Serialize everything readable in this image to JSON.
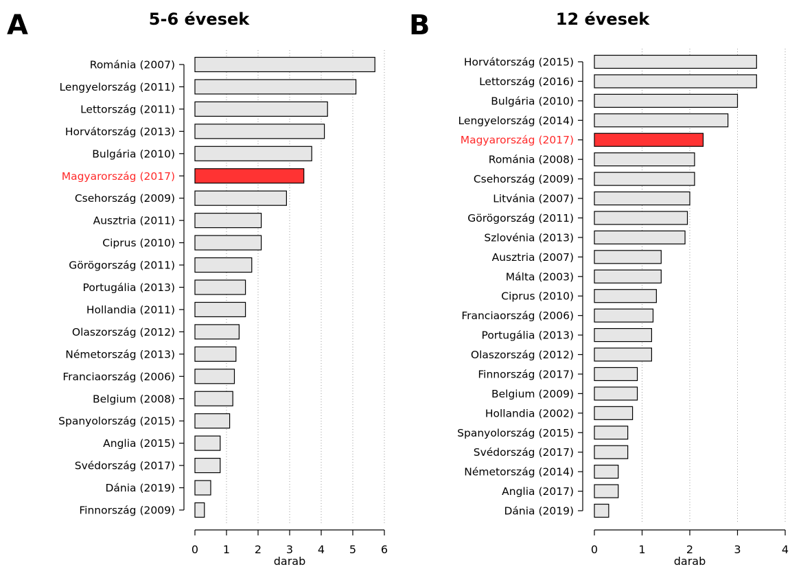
{
  "chart_data": [
    {
      "type": "bar",
      "orientation": "horizontal",
      "panel_letter": "A",
      "title": "5-6 évesek",
      "xlabel": "darab",
      "xlim": [
        0,
        6
      ],
      "xticks": [
        0,
        1,
        2,
        3,
        4,
        5,
        6
      ],
      "grid": "vertical dotted",
      "bar_color": "#e6e6e6",
      "highlight_color": "#ff3333",
      "highlight_category": "Magyarország (2017)",
      "categories": [
        "Románia (2007)",
        "Lengyelország (2011)",
        "Lettország (2011)",
        "Horvátország (2013)",
        "Bulgária (2010)",
        "Magyarország (2017)",
        "Csehország (2009)",
        "Ausztria (2011)",
        "Ciprus (2010)",
        "Görögország (2011)",
        "Portugália (2013)",
        "Hollandia (2011)",
        "Olaszország (2012)",
        "Németország (2013)",
        "Franciaország (2006)",
        "Belgium (2008)",
        "Spanyolország (2015)",
        "Anglia (2015)",
        "Svédország (2017)",
        "Dánia (2019)",
        "Finnország (2009)"
      ],
      "values": [
        5.7,
        5.1,
        4.2,
        4.1,
        3.7,
        3.45,
        2.9,
        2.1,
        2.1,
        1.8,
        1.6,
        1.6,
        1.4,
        1.3,
        1.25,
        1.2,
        1.1,
        0.8,
        0.8,
        0.5,
        0.3
      ]
    },
    {
      "type": "bar",
      "orientation": "horizontal",
      "panel_letter": "B",
      "title": "12 évesek",
      "xlabel": "darab",
      "xlim": [
        0,
        4
      ],
      "xticks": [
        0,
        1,
        2,
        3,
        4
      ],
      "grid": "vertical dotted",
      "bar_color": "#e6e6e6",
      "highlight_color": "#ff3333",
      "highlight_category": "Magyarország (2017)",
      "categories": [
        "Horvátország (2015)",
        "Lettország (2016)",
        "Bulgária (2010)",
        "Lengyelország (2014)",
        "Magyarország (2017)",
        "Románia (2008)",
        "Csehország (2009)",
        "Litvánia (2007)",
        "Görögország (2011)",
        "Szlovénia (2013)",
        "Ausztria (2007)",
        "Málta (2003)",
        "Ciprus (2010)",
        "Franciaország (2006)",
        "Portugália (2013)",
        "Olaszország (2012)",
        "Finnország (2017)",
        "Belgium (2009)",
        "Hollandia (2002)",
        "Spanyolország (2015)",
        "Svédország (2017)",
        "Németország (2014)",
        "Anglia (2017)",
        "Dánia (2019)"
      ],
      "values": [
        3.4,
        3.4,
        3.0,
        2.8,
        2.28,
        2.1,
        2.1,
        2.0,
        1.95,
        1.9,
        1.4,
        1.4,
        1.3,
        1.23,
        1.2,
        1.2,
        0.9,
        0.9,
        0.8,
        0.7,
        0.7,
        0.5,
        0.5,
        0.3
      ]
    }
  ]
}
